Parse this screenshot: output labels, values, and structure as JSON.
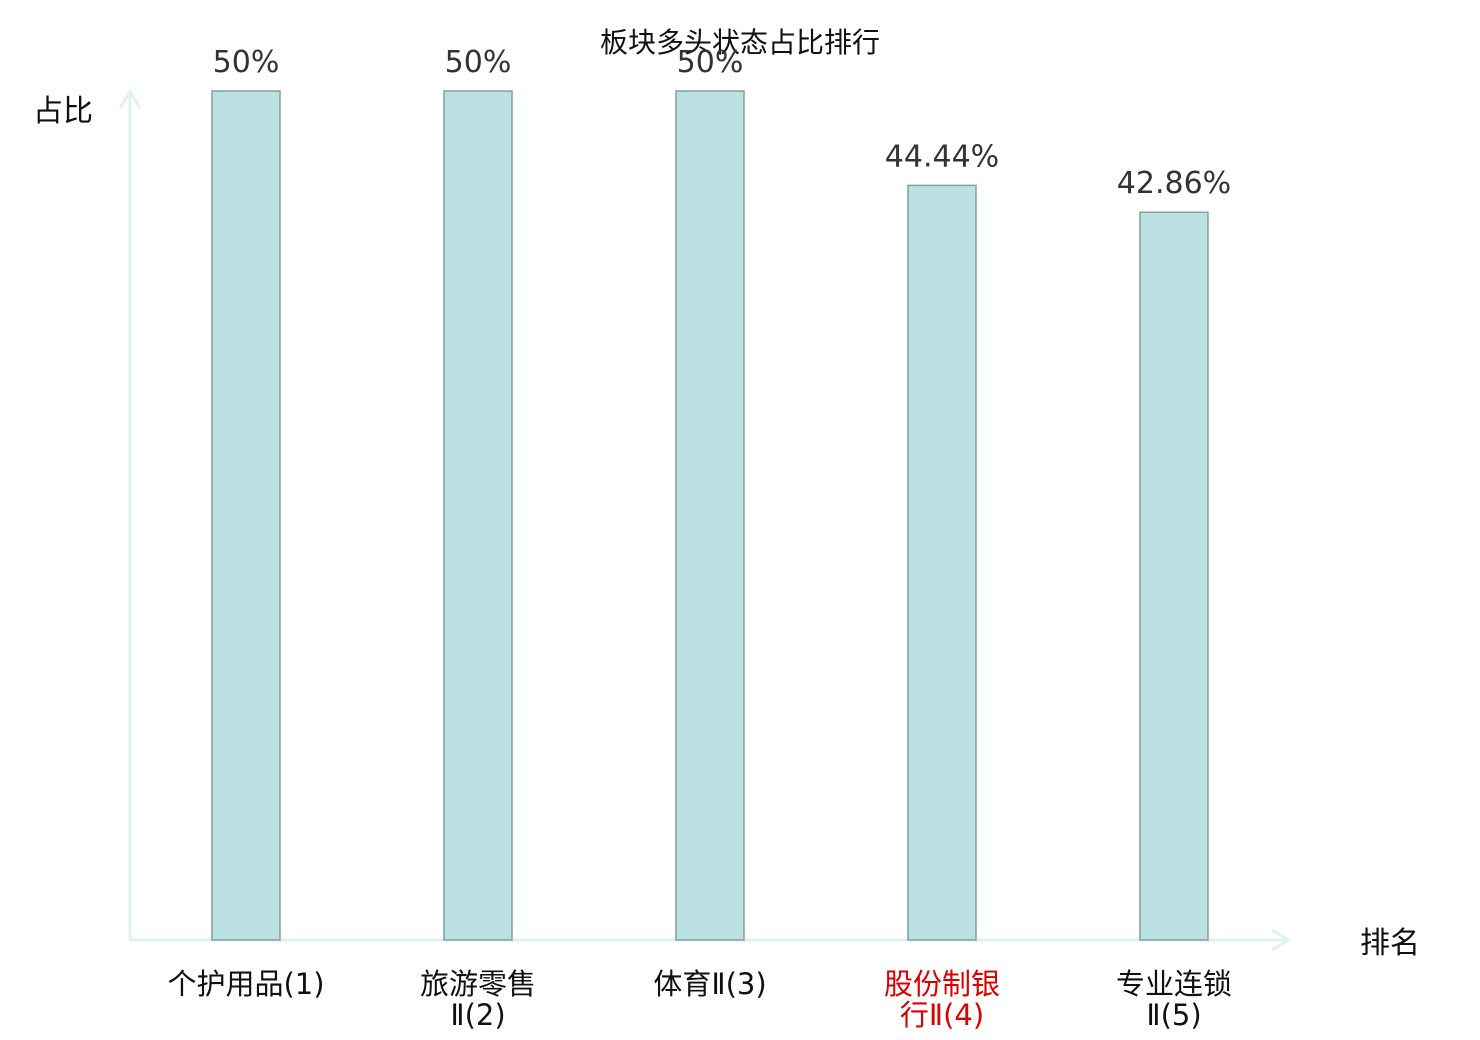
{
  "chart_data": {
    "type": "bar",
    "title": "板块多头状态占比排行",
    "ylabel": "占比",
    "xlabel": "排名",
    "ylim": [
      0,
      50
    ],
    "grid": false,
    "categories": [
      {
        "line1": "个护用品(1)",
        "line2": "",
        "highlight": false
      },
      {
        "line1": "旅游零售",
        "line2": "Ⅱ(2)",
        "highlight": false
      },
      {
        "line1": "体育Ⅱ(3)",
        "line2": "",
        "highlight": false
      },
      {
        "line1": "股份制银",
        "line2": "行Ⅱ(4)",
        "highlight": true
      },
      {
        "line1": "专业连锁",
        "line2": "Ⅱ(5)",
        "highlight": false
      }
    ],
    "values": [
      50,
      50,
      50,
      44.44,
      42.86
    ],
    "value_labels": [
      "50%",
      "50%",
      "50%",
      "44.44%",
      "42.86%"
    ],
    "colors": {
      "bar_fill": "#bce1e3",
      "bar_stroke": "#7fa2a4",
      "axis": "#e0f2f0",
      "highlight_text": "#dd0000",
      "text": "#111111"
    }
  }
}
